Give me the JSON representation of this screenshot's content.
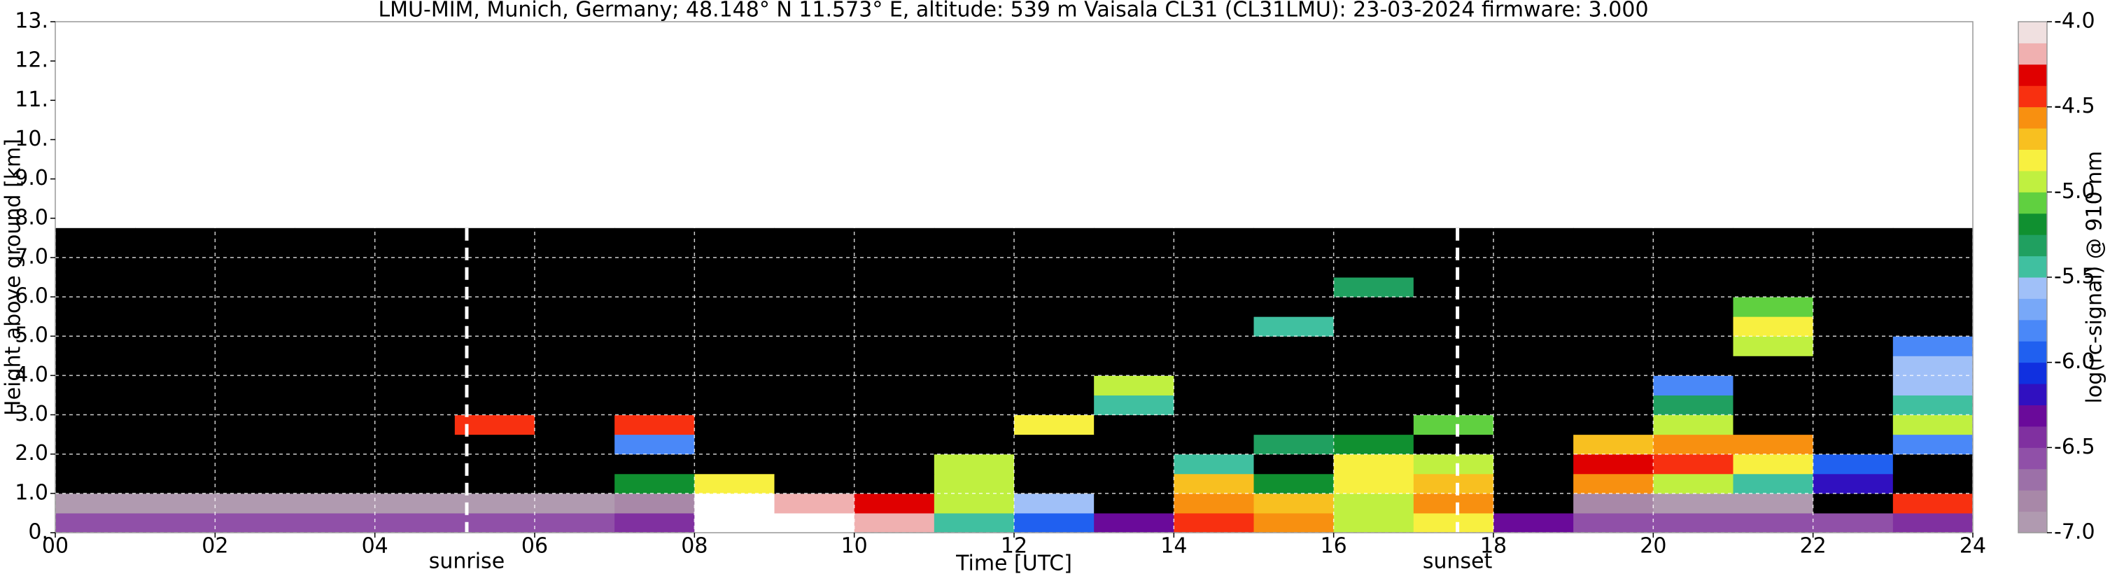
{
  "chart_data": {
    "type": "heatmap",
    "title": "LMU-MIM, Munich, Germany; 48.148° N 11.573° E, altitude: 539 m    Vaisala CL31 (CL31LMU): 23-03-2024    firmware: 3.000",
    "xlabel": "Time [UTC]",
    "ylabel": "Height above ground [km]",
    "colorbar_label": "log(rc-signal) @ 910 nm",
    "xlim": [
      0,
      24
    ],
    "ylim": [
      0,
      13
    ],
    "xticks": [
      {
        "value": 0,
        "label": "00"
      },
      {
        "value": 2,
        "label": "02"
      },
      {
        "value": 4,
        "label": "04"
      },
      {
        "value": 6,
        "label": "06"
      },
      {
        "value": 8,
        "label": "08"
      },
      {
        "value": 10,
        "label": "10"
      },
      {
        "value": 12,
        "label": "12"
      },
      {
        "value": 14,
        "label": "14"
      },
      {
        "value": 16,
        "label": "16"
      },
      {
        "value": 18,
        "label": "18"
      },
      {
        "value": 20,
        "label": "20"
      },
      {
        "value": 22,
        "label": "22"
      },
      {
        "value": 24,
        "label": "24"
      }
    ],
    "yticks": [
      {
        "value": 0,
        "label": "0."
      },
      {
        "value": 1,
        "label": "1.0"
      },
      {
        "value": 2,
        "label": "2.0"
      },
      {
        "value": 3,
        "label": "3.0"
      },
      {
        "value": 4,
        "label": "4.0"
      },
      {
        "value": 5,
        "label": "5.0"
      },
      {
        "value": 6,
        "label": "6.0"
      },
      {
        "value": 7,
        "label": "7.0"
      },
      {
        "value": 8,
        "label": "8.0"
      },
      {
        "value": 9,
        "label": "9.0"
      },
      {
        "value": 10,
        "label": "10."
      },
      {
        "value": 11,
        "label": "11."
      },
      {
        "value": 12,
        "label": "12."
      },
      {
        "value": 13,
        "label": "13."
      }
    ],
    "grid": true,
    "clim": [
      -7.0,
      -4.0
    ],
    "cticks": [
      {
        "value": -4.0,
        "label": "-4.0"
      },
      {
        "value": -4.5,
        "label": "-4.5"
      },
      {
        "value": -5.0,
        "label": "-5.0"
      },
      {
        "value": -5.5,
        "label": "-5.5"
      },
      {
        "value": -6.0,
        "label": "-6.0"
      },
      {
        "value": -6.5,
        "label": "-6.5"
      },
      {
        "value": -7.0,
        "label": "-7.0"
      }
    ],
    "colors": [
      "#b09ab0",
      "#a888a8",
      "#9c70a8",
      "#9050a8",
      "#8030a0",
      "#6a0a9a",
      "#3010c0",
      "#1030e0",
      "#2060f0",
      "#4a88f8",
      "#78a8f8",
      "#a0c0f8",
      "#40c0a0",
      "#20a060",
      "#109030",
      "#60d040",
      "#c0f040",
      "#f8f040",
      "#f8c020",
      "#f89010",
      "#f83010",
      "#e00000",
      "#f0b0b0",
      "#f0e0e0"
    ],
    "under_color": "#000000",
    "over_color": "#ffffff",
    "x_edges": [
      0,
      1,
      2,
      3,
      4,
      5,
      6,
      7,
      8,
      9,
      10,
      11,
      12,
      13,
      14,
      15,
      16,
      17,
      18,
      19,
      20,
      21,
      22,
      23,
      24
    ],
    "y_edges": [
      0,
      0.5,
      1,
      1.5,
      2,
      2.5,
      3,
      3.5,
      4,
      4.5,
      5,
      5.5,
      6,
      6.5,
      7,
      7.5,
      7.75
    ],
    "z": [
      [
        -6.6,
        -6.6,
        -6.6,
        -6.6,
        -6.6,
        -6.6,
        -6.6,
        -6.5,
        -3.8,
        -3.8,
        -4.2,
        -5.5,
        -6.0,
        -6.3,
        -4.5,
        -4.6,
        -5.0,
        -4.8,
        -6.3,
        -6.6,
        -6.6,
        -6.6,
        -6.6,
        -6.5
      ],
      [
        -6.9,
        -6.9,
        -6.9,
        -6.9,
        -6.9,
        -6.9,
        -6.9,
        -6.8,
        -3.9,
        -4.2,
        -4.3,
        -5.0,
        -5.6,
        -7.3,
        -4.6,
        -4.7,
        -5.0,
        -4.6,
        -7.3,
        -6.8,
        -6.9,
        -6.9,
        -7.3,
        -4.4
      ],
      [
        -7.3,
        -7.3,
        -7.3,
        -7.3,
        -7.3,
        -7.3,
        -7.3,
        -5.2,
        -4.8,
        -7.3,
        -7.3,
        -4.9,
        -7.3,
        -7.3,
        -4.7,
        -5.2,
        -4.8,
        -4.7,
        -7.3,
        -4.6,
        -4.9,
        -5.4,
        -6.2,
        -7.3
      ],
      [
        -7.3,
        -7.3,
        -7.3,
        -7.3,
        -7.3,
        -7.3,
        -7.3,
        -7.3,
        -7.3,
        -7.3,
        -7.3,
        -5.0,
        -7.3,
        -7.3,
        -5.5,
        -7.3,
        -4.8,
        -5.0,
        -7.3,
        -4.3,
        -4.5,
        -4.8,
        -6.0,
        -7.3
      ],
      [
        -7.3,
        -7.3,
        -7.3,
        -7.3,
        -7.3,
        -7.3,
        -7.3,
        -5.8,
        -7.3,
        -7.3,
        -7.3,
        -7.3,
        -7.3,
        -7.3,
        -7.3,
        -5.3,
        -5.2,
        -7.3,
        -7.3,
        -4.7,
        -4.6,
        -4.6,
        -7.3,
        -5.8
      ],
      [
        -7.3,
        -7.3,
        -7.3,
        -7.3,
        -7.3,
        -4.4,
        -7.3,
        -4.5,
        -7.3,
        -7.3,
        -7.3,
        -7.3,
        -4.8,
        -7.3,
        -7.3,
        -7.3,
        -7.3,
        -5.1,
        -7.3,
        -7.3,
        -5.0,
        -7.3,
        -7.3,
        -5.0
      ],
      [
        -7.3,
        -7.3,
        -7.3,
        -7.3,
        -7.3,
        -7.3,
        -7.3,
        -7.3,
        -7.3,
        -7.3,
        -7.3,
        -7.3,
        -7.3,
        -5.5,
        -7.3,
        -7.3,
        -7.3,
        -7.3,
        -7.3,
        -7.3,
        -5.3,
        -7.3,
        -7.3,
        -5.5
      ],
      [
        -7.3,
        -7.3,
        -7.3,
        -7.3,
        -7.3,
        -7.3,
        -7.3,
        -7.3,
        -7.3,
        -7.3,
        -7.3,
        -7.3,
        -7.3,
        -4.9,
        -7.3,
        -7.3,
        -7.3,
        -7.3,
        -7.3,
        -7.3,
        -5.8,
        -7.3,
        -7.3,
        -5.6
      ],
      [
        -7.3,
        -7.3,
        -7.3,
        -7.3,
        -7.3,
        -7.3,
        -7.3,
        -7.3,
        -7.3,
        -7.3,
        -7.3,
        -7.3,
        -7.3,
        -7.3,
        -7.3,
        -7.3,
        -7.3,
        -7.3,
        -7.3,
        -7.3,
        -7.3,
        -7.3,
        -7.3,
        -5.6
      ],
      [
        -7.3,
        -7.3,
        -7.3,
        -7.3,
        -7.3,
        -7.3,
        -7.3,
        -7.3,
        -7.3,
        -7.3,
        -7.3,
        -7.3,
        -7.3,
        -7.3,
        -7.3,
        -7.3,
        -7.3,
        -7.3,
        -7.3,
        -7.3,
        -7.3,
        -5.0,
        -7.3,
        -5.8
      ],
      [
        -7.3,
        -7.3,
        -7.3,
        -7.3,
        -7.3,
        -7.3,
        -7.3,
        -7.3,
        -7.3,
        -7.3,
        -7.3,
        -7.3,
        -7.3,
        -7.3,
        -7.3,
        -5.4,
        -7.3,
        -7.3,
        -7.3,
        -7.3,
        -7.3,
        -4.8,
        -7.3,
        -7.3
      ],
      [
        -7.3,
        -7.3,
        -7.3,
        -7.3,
        -7.3,
        -7.3,
        -7.3,
        -7.3,
        -7.3,
        -7.3,
        -7.3,
        -7.3,
        -7.3,
        -7.3,
        -7.3,
        -7.3,
        -7.3,
        -7.3,
        -7.3,
        -7.3,
        -7.3,
        -5.1,
        -7.3,
        -7.3
      ],
      [
        -7.3,
        -7.3,
        -7.3,
        -7.3,
        -7.3,
        -7.3,
        -7.3,
        -7.3,
        -7.3,
        -7.3,
        -7.3,
        -7.3,
        -7.3,
        -7.3,
        -7.3,
        -7.3,
        -5.3,
        -7.3,
        -7.3,
        -7.3,
        -7.3,
        -7.3,
        -7.3,
        -7.3
      ],
      [
        -7.3,
        -7.3,
        -7.3,
        -7.3,
        -7.3,
        -7.3,
        -7.3,
        -7.3,
        -7.3,
        -7.3,
        -7.3,
        -7.3,
        -7.3,
        -7.3,
        -7.3,
        -7.3,
        -7.3,
        -7.3,
        -7.3,
        -7.3,
        -7.3,
        -7.3,
        -7.3,
        -7.3
      ],
      [
        -7.3,
        -7.3,
        -7.3,
        -7.3,
        -7.3,
        -7.3,
        -7.3,
        -7.3,
        -7.3,
        -7.3,
        -7.3,
        -7.3,
        -7.3,
        -7.3,
        -7.3,
        -7.3,
        -7.3,
        -7.3,
        -7.3,
        -7.3,
        -7.3,
        -7.3,
        -7.3,
        -7.3
      ],
      [
        -7.3,
        -7.3,
        -7.3,
        -7.3,
        -7.3,
        -7.3,
        -7.3,
        -7.3,
        -7.3,
        -7.3,
        -7.3,
        -7.3,
        -7.3,
        -7.3,
        -7.3,
        -7.3,
        -7.3,
        -7.3,
        -7.3,
        -7.3,
        -7.3,
        -7.3,
        -7.3,
        -7.3
      ]
    ],
    "annotations": [
      {
        "text": "sunrise",
        "x": 5.15
      },
      {
        "text": "sunset",
        "x": 17.55
      }
    ]
  }
}
